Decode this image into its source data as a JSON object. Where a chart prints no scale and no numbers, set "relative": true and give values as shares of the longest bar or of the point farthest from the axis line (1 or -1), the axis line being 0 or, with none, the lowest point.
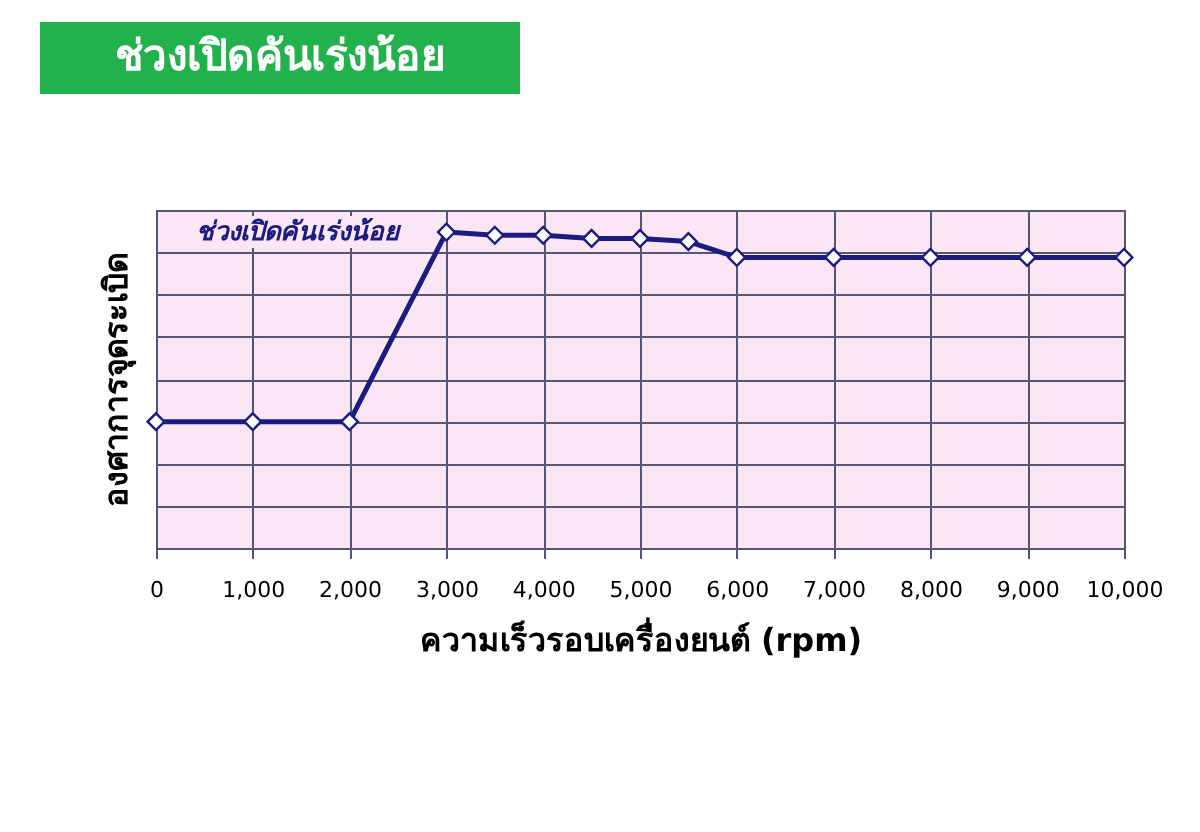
{
  "chart_data": {
    "type": "line",
    "title": "ช่วงเปิดคันเร่งน้อย",
    "xlabel": "ความเร็วรอบเครื่องยนต์ (rpm)",
    "ylabel": "องศาการจุดระเบิด",
    "relative": true,
    "x": [
      0,
      1000,
      2000,
      3000,
      3500,
      4000,
      4500,
      5000,
      5500,
      6000,
      7000,
      8000,
      9000,
      10000
    ],
    "xlim": [
      0,
      10000
    ],
    "xticks": [
      0,
      {
        "value": 1000,
        "label": "1,000"
      },
      {
        "value": 2000,
        "label": "2,000"
      },
      {
        "value": 3000,
        "label": "3,000"
      },
      {
        "value": 4000,
        "label": "4,000"
      },
      {
        "value": 5000,
        "label": "5,000"
      },
      {
        "value": 6000,
        "label": "6,000"
      },
      {
        "value": 7000,
        "label": "7,000"
      },
      {
        "value": 8000,
        "label": "8,000"
      },
      {
        "value": 9000,
        "label": "9,000"
      },
      {
        "value": 10000,
        "label": "10,000"
      }
    ],
    "series": [
      {
        "name": "ช่วงเปิดคันเร่งน้อย",
        "color": "#1c1c80",
        "values": [
          0.4,
          0.4,
          0.4,
          1,
          0.99,
          0.99,
          0.98,
          0.98,
          0.97,
          0.92,
          0.92,
          0.92,
          0.92,
          0.92
        ]
      }
    ],
    "grid": true,
    "marker": "diamond",
    "line_style": "solid",
    "legend": false
  }
}
